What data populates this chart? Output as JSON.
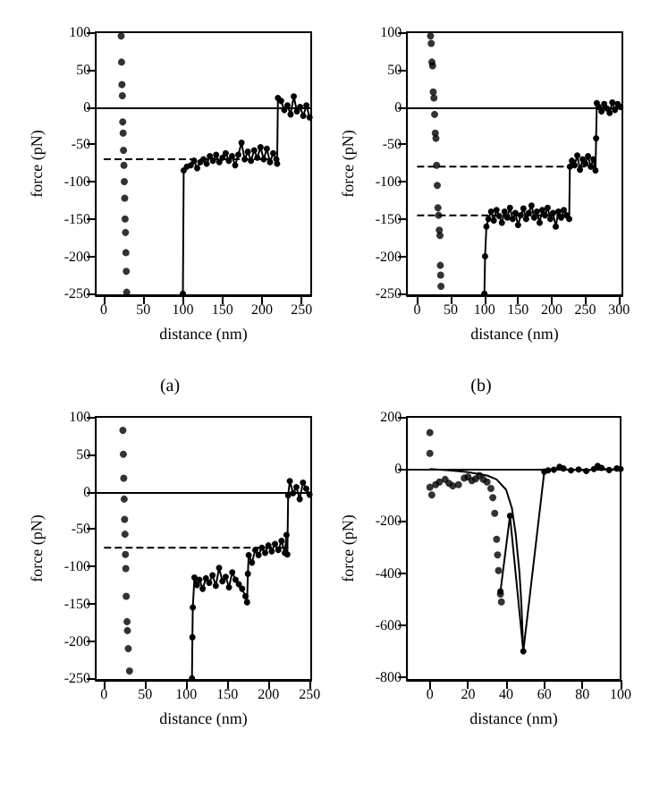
{
  "chart_data": [
    {
      "type": "scatter",
      "xlabel": "distance (nm)",
      "ylabel": "force (pN)",
      "annotations": [
        "(a)"
      ],
      "xlim": [
        -10,
        262
      ],
      "xticks": [
        0,
        50,
        100,
        150,
        200,
        250
      ],
      "ylim": [
        -252,
        100
      ],
      "yticks": [
        -250,
        -200,
        -150,
        -100,
        -50,
        0,
        50,
        100
      ],
      "ref_lines": [
        {
          "axis": "y",
          "value": 0,
          "color": "#000000",
          "line_style": "solid"
        }
      ],
      "series": [
        {
          "color": "#000000",
          "marker": "circle",
          "x": [
            22,
            22.5,
            23,
            23.5,
            24,
            24.5,
            25,
            25.5,
            26,
            26.5,
            27,
            27.5,
            28,
            28.5,
            29
          ],
          "values": [
            95,
            60,
            30,
            15,
            -20,
            -35,
            -58,
            -78,
            -100,
            -122,
            -150,
            -168,
            -195,
            -220,
            -248
          ]
        },
        {
          "type": "line",
          "color": "#000000",
          "marker": "circle",
          "line_style": "solid",
          "x": [
            100,
            101,
            105,
            110,
            114,
            118,
            122,
            126,
            130,
            134,
            138,
            142,
            146,
            150,
            154,
            158,
            162,
            166,
            170,
            174,
            178,
            182,
            186,
            190,
            194,
            198,
            202,
            206,
            210,
            214,
            218,
            219,
            220,
            224,
            228,
            232,
            236,
            240,
            244,
            248,
            252,
            256,
            260
          ],
          "values": [
            -250,
            -85,
            -80,
            -78,
            -72,
            -82,
            -74,
            -70,
            -76,
            -66,
            -72,
            -64,
            -74,
            -68,
            -62,
            -72,
            -66,
            -78,
            -64,
            -48,
            -70,
            -60,
            -72,
            -58,
            -68,
            -54,
            -70,
            -56,
            -74,
            -62,
            -70,
            -76,
            12,
            8,
            -4,
            2,
            -10,
            14,
            -6,
            0,
            -12,
            2,
            -14
          ]
        },
        {
          "type": "line",
          "color": "#000000",
          "marker": "none",
          "line_style": "dashed",
          "x": [
            0,
            220
          ],
          "values": [
            -70,
            -70
          ]
        }
      ]
    },
    {
      "type": "scatter",
      "xlabel": "distance (nm)",
      "ylabel": "force (pN)",
      "annotations": [
        "(b)"
      ],
      "xlim": [
        -15,
        305
      ],
      "xticks": [
        0,
        50,
        100,
        150,
        200,
        250,
        300
      ],
      "ylim": [
        -252,
        100
      ],
      "yticks": [
        -250,
        -200,
        -150,
        -100,
        -50,
        0,
        50,
        100
      ],
      "ref_lines": [
        {
          "axis": "y",
          "value": 0,
          "color": "#000000",
          "line_style": "solid"
        }
      ],
      "series": [
        {
          "color": "#000000",
          "marker": "circle",
          "x": [
            20,
            21,
            22,
            23,
            24,
            25,
            26,
            27,
            28,
            29,
            30,
            31,
            32,
            33,
            34,
            34.5,
            35,
            35.5
          ],
          "values": [
            95,
            85,
            60,
            55,
            20,
            12,
            -10,
            -35,
            -42,
            -78,
            -105,
            -135,
            -145,
            -165,
            -172,
            -212,
            -225,
            -240
          ]
        },
        {
          "type": "line",
          "color": "#000000",
          "marker": "circle",
          "line_style": "solid",
          "x": [
            100,
            101,
            103,
            106,
            110,
            114,
            118,
            122,
            126,
            130,
            134,
            138,
            142,
            146,
            150,
            154,
            158,
            162,
            166,
            170,
            174,
            178,
            182,
            186,
            190,
            194,
            198,
            202,
            206,
            210,
            214,
            218,
            222,
            226,
            227,
            230,
            234,
            238,
            242,
            246,
            250,
            254,
            258,
            262,
            265,
            266,
            267,
            270,
            274,
            278,
            282,
            286,
            290,
            294,
            298,
            302
          ],
          "values": [
            -250,
            -200,
            -160,
            -150,
            -140,
            -152,
            -138,
            -146,
            -155,
            -140,
            -148,
            -135,
            -150,
            -142,
            -158,
            -145,
            -136,
            -150,
            -142,
            -132,
            -148,
            -140,
            -155,
            -138,
            -145,
            -135,
            -150,
            -142,
            -160,
            -140,
            -148,
            -138,
            -145,
            -150,
            -80,
            -72,
            -78,
            -65,
            -84,
            -70,
            -76,
            -66,
            -80,
            -70,
            -85,
            -42,
            5,
            0,
            -6,
            4,
            -2,
            -8,
            6,
            -4,
            4,
            0
          ]
        },
        {
          "type": "line",
          "color": "#000000",
          "marker": "none",
          "line_style": "dashed",
          "x": [
            0,
            265
          ],
          "values": [
            -80,
            -80
          ]
        },
        {
          "type": "line",
          "color": "#000000",
          "marker": "none",
          "line_style": "dashed",
          "x": [
            0,
            226
          ],
          "values": [
            -145,
            -145
          ]
        }
      ]
    },
    {
      "type": "scatter",
      "xlabel": "distance (nm)",
      "ylabel": "force (pN)",
      "xlim": [
        -10,
        252
      ],
      "xticks": [
        0,
        50,
        100,
        150,
        200,
        250
      ],
      "ylim": [
        -252,
        100
      ],
      "yticks": [
        -250,
        -200,
        -150,
        -100,
        -50,
        0,
        50,
        100
      ],
      "ref_lines": [
        {
          "axis": "y",
          "value": 0,
          "color": "#000000",
          "line_style": "solid"
        }
      ],
      "series": [
        {
          "color": "#000000",
          "marker": "circle",
          "x": [
            23,
            23.5,
            24,
            24.5,
            25,
            25.5,
            26,
            26.5,
            27,
            28,
            28.5,
            29.5,
            31
          ],
          "values": [
            82,
            50,
            18,
            -10,
            -37,
            -57,
            -84,
            -103,
            -140,
            -174,
            -186,
            -210,
            -240
          ]
        },
        {
          "type": "line",
          "color": "#000000",
          "marker": "circle",
          "line_style": "solid",
          "x": [
            107,
            107.5,
            108,
            110,
            113,
            116,
            120,
            124,
            128,
            132,
            136,
            140,
            144,
            148,
            152,
            156,
            160,
            164,
            168,
            172,
            174,
            175,
            176,
            180,
            184,
            188,
            192,
            196,
            200,
            204,
            208,
            212,
            216,
            220,
            222,
            223,
            224,
            226,
            230,
            234,
            238,
            242,
            246,
            250
          ],
          "values": [
            -250,
            -195,
            -155,
            -115,
            -125,
            -118,
            -130,
            -116,
            -122,
            -112,
            -126,
            -102,
            -120,
            -114,
            -128,
            -108,
            -118,
            -124,
            -130,
            -140,
            -148,
            -110,
            -85,
            -95,
            -78,
            -85,
            -75,
            -82,
            -72,
            -80,
            -70,
            -78,
            -66,
            -82,
            -58,
            -84,
            -5,
            14,
            -2,
            6,
            -10,
            12,
            4,
            -4
          ]
        },
        {
          "type": "line",
          "color": "#000000",
          "marker": "none",
          "line_style": "dashed",
          "x": [
            0,
            224
          ],
          "values": [
            -75,
            -75
          ]
        }
      ]
    },
    {
      "type": "scatter",
      "xlabel": "distance (nm)",
      "ylabel": "force (pN)",
      "xlim": [
        -12,
        100
      ],
      "xticks": [
        0,
        20,
        40,
        60,
        80,
        100
      ],
      "ylim": [
        -810,
        200
      ],
      "yticks": [
        -800,
        -600,
        -400,
        -200,
        0,
        200
      ],
      "ref_lines": [
        {
          "axis": "y",
          "value": 0,
          "color": "#000000",
          "line_style": "solid"
        }
      ],
      "series": [
        {
          "color": "#000000",
          "marker": "circle",
          "x": [
            0,
            0,
            0,
            1,
            3,
            5,
            8,
            10,
            12,
            15,
            18,
            20,
            22,
            24,
            26,
            28,
            30,
            32,
            33,
            34,
            35,
            35.5,
            36,
            37,
            37.5
          ],
          "values": [
            140,
            60,
            -70,
            -100,
            -60,
            -50,
            -40,
            -55,
            -65,
            -60,
            -35,
            -30,
            -45,
            -38,
            -25,
            -40,
            -50,
            -75,
            -110,
            -170,
            -270,
            -330,
            -390,
            -480,
            -510
          ]
        },
        {
          "type": "line",
          "color": "#000000",
          "marker": "circle",
          "line_style": "solid",
          "x": [
            37,
            42,
            49,
            60,
            62,
            65,
            68,
            70,
            74,
            78,
            82,
            86,
            88,
            90,
            94,
            98,
            100
          ],
          "values": [
            -470,
            -180,
            -700,
            -10,
            -5,
            -3,
            8,
            2,
            -5,
            -2,
            -8,
            0,
            12,
            4,
            -4,
            2,
            0
          ]
        },
        {
          "type": "line",
          "color": "#000000",
          "marker": "none",
          "line_style": "solid",
          "x": [
            0,
            10,
            20,
            30,
            35,
            40,
            43,
            45,
            47,
            48,
            49
          ],
          "values": [
            0,
            -5,
            -12,
            -25,
            -40,
            -80,
            -150,
            -250,
            -400,
            -520,
            -700
          ]
        }
      ]
    }
  ]
}
